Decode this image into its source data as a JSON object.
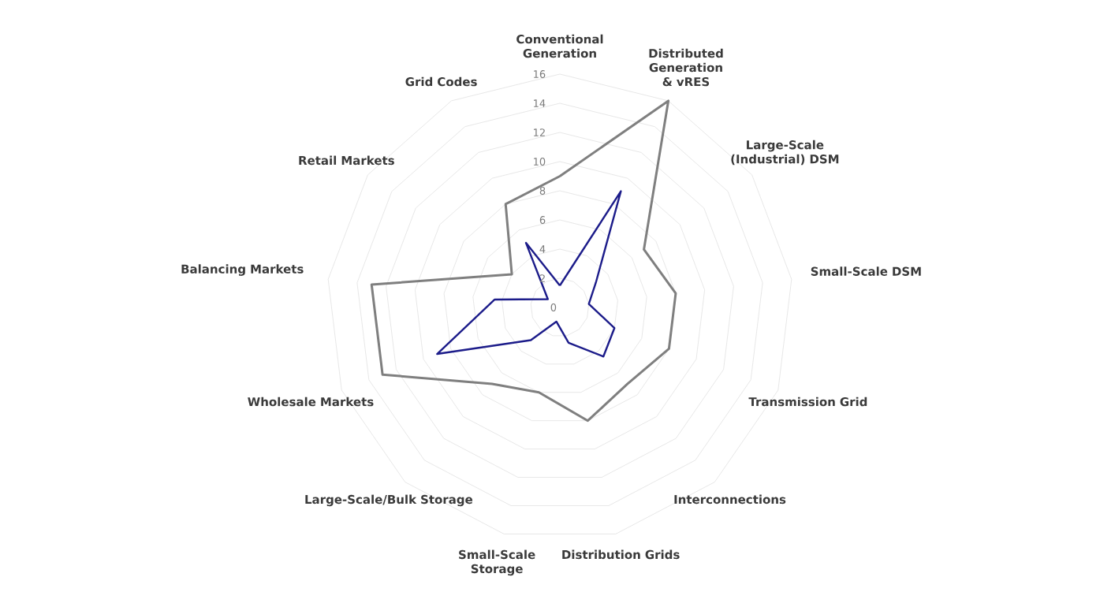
{
  "chart_data": {
    "type": "radar",
    "categories": [
      "Conventional Generation",
      "Distributed Generation & vRES",
      "Large-Scale (Industrial) DSM",
      "Small-Scale DSM",
      "Transmission Grid",
      "Interconnections",
      "Distribution Grids",
      "Small-Scale Storage",
      "Large-Scale/Bulk Storage",
      "Wholesale Markets",
      "Balancing Markets",
      "Retail Markets",
      "Grid Codes"
    ],
    "ylim": [
      0,
      16
    ],
    "yticks": [
      0,
      2,
      4,
      6,
      8,
      10,
      12,
      14,
      16
    ],
    "grid": true,
    "series": [
      {
        "color": "#7f7f7f",
        "values": [
          9,
          16,
          7,
          8,
          8,
          7,
          8,
          6,
          7,
          13,
          13,
          4,
          8
        ]
      },
      {
        "color": "#1c1c8a",
        "values": [
          1.5,
          9,
          3,
          2,
          4,
          4.5,
          2.5,
          1,
          3,
          9,
          4.5,
          1,
          5
        ]
      }
    ]
  }
}
